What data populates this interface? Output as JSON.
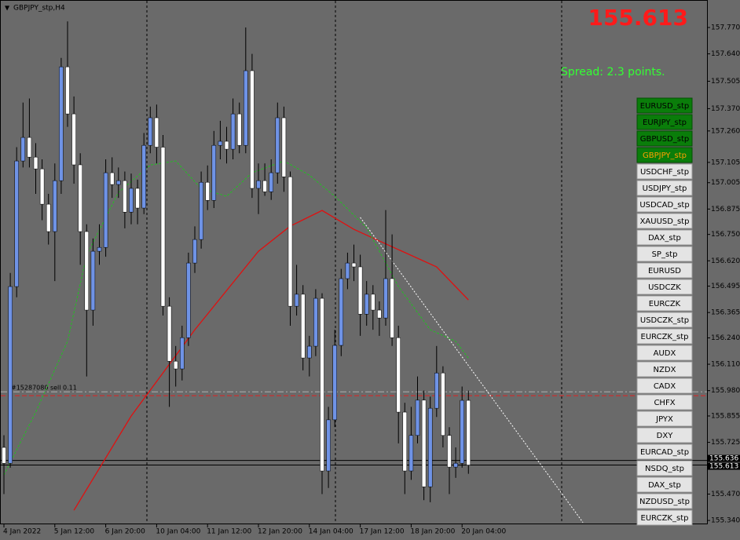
{
  "chart_data": {
    "type": "candlestick",
    "title": "GBPJPY_stp,H4",
    "categories": [
      "4 Jan 2022",
      null,
      null,
      null,
      null,
      null,
      null,
      null,
      "5 Jan 12:00",
      null,
      null,
      null,
      null,
      null,
      null,
      null,
      "6 Jan 20:00",
      null,
      null,
      null,
      null,
      null,
      null,
      null,
      "10 Jan 04:00",
      null,
      null,
      null,
      null,
      null,
      null,
      null,
      "11 Jan 12:00",
      null,
      null,
      null,
      null,
      null,
      null,
      null,
      "12 Jan 20:00",
      null,
      null,
      null,
      null,
      null,
      null,
      null,
      "14 Jan 04:00",
      null,
      null,
      null,
      null,
      null,
      null,
      null,
      "17 Jan 12:00",
      null,
      null,
      null,
      null,
      null,
      null,
      null,
      "18 Jan 20:00",
      null,
      null,
      null,
      null,
      null,
      null,
      null,
      "20 Jan 04:00",
      null
    ],
    "open": [
      155.7,
      155.622,
      156.493,
      157.112,
      157.228,
      157.131,
      157.073,
      156.899,
      156.764,
      157.015,
      157.576,
      157.344,
      157.093,
      156.764,
      156.377,
      156.667,
      156.686,
      157.054,
      156.996,
      157.015,
      156.86,
      156.977,
      156.88,
      157.189,
      157.325,
      157.18,
      156.396,
      156.125,
      156.087,
      156.241,
      156.609,
      156.725,
      157.007,
      156.918,
      157.189,
      157.209,
      157.17,
      157.344,
      157.189,
      157.557,
      156.977,
      157.015,
      156.96,
      157.054,
      157.325,
      157.034,
      156.396,
      156.455,
      156.141,
      156.199,
      156.435,
      155.584,
      155.836,
      156.203,
      156.532,
      156.609,
      156.59,
      156.357,
      156.455,
      156.377,
      156.338,
      156.532,
      156.241,
      155.874,
      155.584,
      155.759,
      155.933,
      155.506,
      155.893,
      156.067,
      155.759,
      155.603,
      155.622,
      155.932
    ],
    "high": [
      155.76,
      156.56,
      157.18,
      157.4,
      157.42,
      157.2,
      157.12,
      156.95,
      157.1,
      157.62,
      157.8,
      157.43,
      157.15,
      156.8,
      156.73,
      156.8,
      157.12,
      157.13,
      157.08,
      157.06,
      157.05,
      157.02,
      157.25,
      157.38,
      157.39,
      157.24,
      156.44,
      156.2,
      156.3,
      156.66,
      156.79,
      157.06,
      157.09,
      157.26,
      157.31,
      157.28,
      157.42,
      157.4,
      157.77,
      157.64,
      157.1,
      157.1,
      157.12,
      157.4,
      157.38,
      157.06,
      156.6,
      156.5,
      156.25,
      156.48,
      156.46,
      155.9,
      156.28,
      156.58,
      156.66,
      156.7,
      156.65,
      156.52,
      156.5,
      156.42,
      156.87,
      156.75,
      156.3,
      155.92,
      155.9,
      156.05,
      155.98,
      155.95,
      156.2,
      156.1,
      155.8,
      155.7,
      156.0,
      155.98
    ],
    "low": [
      155.47,
      155.6,
      156.44,
      157.08,
      157.08,
      156.95,
      156.82,
      156.7,
      156.52,
      156.95,
      157.28,
      157.0,
      156.6,
      156.05,
      156.3,
      156.6,
      156.64,
      156.93,
      156.93,
      156.78,
      156.8,
      156.8,
      156.85,
      157.15,
      157.1,
      156.35,
      155.9,
      156.0,
      156.03,
      156.2,
      156.56,
      156.68,
      156.87,
      156.88,
      157.12,
      157.1,
      157.12,
      157.15,
      157.15,
      156.93,
      156.85,
      156.94,
      156.92,
      157.0,
      156.96,
      156.3,
      156.35,
      156.08,
      156.05,
      156.15,
      155.47,
      155.5,
      155.8,
      156.15,
      156.48,
      156.52,
      156.25,
      156.3,
      156.28,
      156.25,
      156.3,
      156.2,
      155.72,
      155.47,
      155.54,
      155.72,
      155.44,
      155.43,
      155.85,
      155.7,
      155.47,
      155.55,
      155.6,
      155.57
    ],
    "close": [
      155.622,
      156.493,
      157.112,
      157.228,
      157.131,
      157.073,
      156.899,
      156.764,
      157.015,
      157.576,
      157.344,
      157.093,
      156.764,
      156.377,
      156.667,
      156.686,
      157.054,
      156.996,
      157.015,
      156.86,
      156.977,
      156.88,
      157.189,
      157.325,
      157.18,
      156.396,
      156.125,
      156.087,
      156.241,
      156.609,
      156.725,
      157.007,
      156.918,
      157.189,
      157.209,
      157.17,
      157.344,
      157.189,
      157.557,
      156.977,
      157.015,
      156.96,
      157.054,
      157.325,
      157.034,
      156.396,
      156.455,
      156.141,
      156.199,
      156.435,
      155.584,
      155.836,
      156.203,
      156.532,
      156.609,
      156.59,
      156.357,
      156.455,
      156.377,
      156.338,
      156.532,
      156.241,
      155.874,
      155.584,
      155.759,
      155.933,
      155.506,
      155.893,
      156.067,
      155.759,
      155.603,
      155.622,
      155.932,
      155.613
    ],
    "up_color": "#6f93e6",
    "down_color": "#ffffff",
    "ylim": [
      155.321,
      157.89
    ],
    "yticks": [
      {
        "value": 157.77,
        "label": "157.770"
      },
      {
        "value": 157.64,
        "label": "157.640"
      },
      157.505,
      {
        "value": 157.37,
        "label": "157.370"
      },
      {
        "value": 157.26,
        "label": "157.260"
      },
      157.105,
      157.005,
      156.875,
      {
        "value": 156.75,
        "label": "156.750"
      },
      {
        "value": 156.62,
        "label": "156.620"
      },
      156.495,
      156.365,
      {
        "value": 156.24,
        "label": "156.240"
      },
      {
        "value": 156.11,
        "label": "156.110"
      },
      {
        "value": 155.98,
        "label": "155.980"
      },
      155.855,
      155.725,
      {
        "value": 155.47,
        "label": "155.470"
      },
      {
        "value": 155.34,
        "label": "155.340"
      }
    ],
    "indicators": [
      {
        "color": "#e01010",
        "style": "solid",
        "x": [
          11,
          20,
          30,
          40,
          45,
          50,
          55,
          62,
          68,
          73
        ],
        "values": [
          155.39,
          155.855,
          156.28,
          156.667,
          156.791,
          156.868,
          156.775,
          156.675,
          156.59,
          156.427
        ]
      },
      {
        "color": "#22c022",
        "style": "dashed",
        "x": [
          0,
          5,
          10,
          13,
          18,
          23,
          27,
          31,
          35,
          39,
          44,
          48,
          52,
          57,
          62,
          67,
          71,
          73
        ],
        "values": [
          155.564,
          155.874,
          156.223,
          156.648,
          156.957,
          157.092,
          157.112,
          156.976,
          156.938,
          157.054,
          157.112,
          157.042,
          156.938,
          156.783,
          156.493,
          156.28,
          156.223,
          156.14
        ]
      },
      {
        "color": "#ffffff",
        "style": "dotted",
        "x": [
          56,
          91
        ],
        "values": [
          156.834,
          155.33
        ]
      }
    ],
    "order_line": {
      "value": 155.974,
      "label": "#15287080 sell 0.11",
      "color": "#b0b0b0"
    },
    "stop_line": {
      "value": 155.955,
      "color": "#e02020"
    },
    "ask": 155.636,
    "bid": 155.613,
    "spread": "Spread: 2.3 points."
  },
  "buttons": [
    {
      "label": "EURUSD_stp",
      "state": "active"
    },
    {
      "label": "EURJPY_stp",
      "state": "active"
    },
    {
      "label": "GBPUSD_stp",
      "state": "active"
    },
    {
      "label": "GBPJPY_stp",
      "state": "current"
    },
    {
      "label": "USDCHF_stp",
      "state": "normal"
    },
    {
      "label": "USDJPY_stp",
      "state": "normal"
    },
    {
      "label": "USDCAD_stp",
      "state": "normal"
    },
    {
      "label": "XAUUSD_stp",
      "state": "normal"
    },
    {
      "label": "DAX_stp",
      "state": "normal"
    },
    {
      "label": "SP_stp",
      "state": "normal"
    },
    {
      "label": "EURUSD",
      "state": "normal"
    },
    {
      "label": "USDCZK",
      "state": "normal"
    },
    {
      "label": "EURCZK",
      "state": "normal"
    },
    {
      "label": "USDCZK_stp",
      "state": "normal"
    },
    {
      "label": "EURCZK_stp",
      "state": "normal"
    },
    {
      "label": "AUDX",
      "state": "normal"
    },
    {
      "label": "NZDX",
      "state": "normal"
    },
    {
      "label": "CADX",
      "state": "normal"
    },
    {
      "label": "CHFX",
      "state": "normal"
    },
    {
      "label": "JPYX",
      "state": "normal"
    },
    {
      "label": "DXY",
      "state": "normal"
    },
    {
      "label": "EURCAD_stp",
      "state": "normal"
    },
    {
      "label": "NSDQ_stp",
      "state": "normal"
    },
    {
      "label": "DAX_stp",
      "state": "normal"
    },
    {
      "label": "NZDUSD_stp",
      "state": "normal"
    },
    {
      "label": "EURCZK_stp",
      "state": "normal"
    }
  ]
}
